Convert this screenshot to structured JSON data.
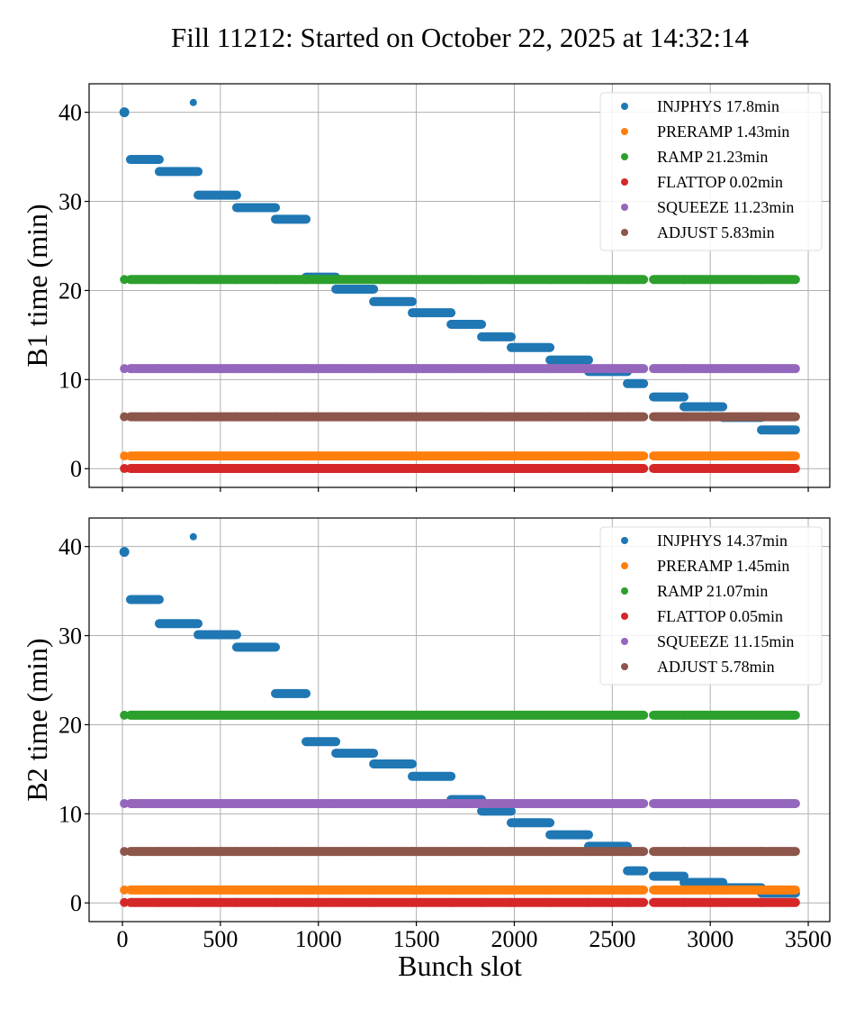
{
  "chart_data": {
    "type": "scatter",
    "title": "Fill 11212: Started on October 22, 2025 at 14:32:14",
    "xlabel": "Bunch slot",
    "xlim": [
      -170,
      3610
    ],
    "xticks": [
      0,
      500,
      1000,
      1500,
      2000,
      2500,
      3000,
      3500
    ],
    "grid": true,
    "colors": {
      "INJPHYS": "#1f77b4",
      "PRERAMP": "#ff7f0e",
      "RAMP": "#2ca02c",
      "FLATTOP": "#d62728",
      "SQUEEZE": "#9467bd",
      "ADJUST": "#8c564b"
    },
    "filling_segments": [
      [
        41,
        188
      ],
      [
        188,
        386
      ],
      [
        386,
        583
      ],
      [
        583,
        781
      ],
      [
        781,
        937
      ],
      [
        937,
        1089
      ],
      [
        1089,
        1282
      ],
      [
        1282,
        1479
      ],
      [
        1479,
        1677
      ],
      [
        1677,
        1833
      ],
      [
        1833,
        1984
      ],
      [
        1984,
        2182
      ],
      [
        2182,
        2379
      ],
      [
        2379,
        2577
      ],
      [
        2577,
        2660
      ],
      [
        2710,
        2866
      ],
      [
        2866,
        3064
      ],
      [
        3064,
        3261
      ],
      [
        3261,
        3435
      ]
    ],
    "single_bunches": [
      10,
      362
    ],
    "panels": [
      {
        "id": "B1",
        "ylabel": "B1 time (min)",
        "ylim": [
          -2.1,
          43.2
        ],
        "yticks": [
          0,
          10,
          20,
          30,
          40
        ],
        "legend_position": "upper-right",
        "series": [
          {
            "name": "INJPHYS",
            "label": "INJPHYS 17.8min",
            "single_values": [
              40.0,
              41.1
            ],
            "segment_values": [
              34.7,
              33.35,
              30.7,
              29.3,
              28.0,
              21.5,
              20.15,
              18.75,
              17.5,
              16.2,
              14.8,
              13.6,
              12.2,
              10.9,
              9.55,
              8.05,
              6.95,
              5.75,
              4.35
            ]
          },
          {
            "name": "PRERAMP",
            "label": "PRERAMP 1.43min",
            "constant": 1.43
          },
          {
            "name": "RAMP",
            "label": "RAMP 21.23min",
            "constant": 21.23
          },
          {
            "name": "FLATTOP",
            "label": "FLATTOP 0.02min",
            "constant": 0.02
          },
          {
            "name": "SQUEEZE",
            "label": "SQUEEZE 11.23min",
            "constant": 11.23
          },
          {
            "name": "ADJUST",
            "label": "ADJUST 5.83min",
            "constant": 5.83
          }
        ]
      },
      {
        "id": "B2",
        "ylabel": "B2 time (min)",
        "ylim": [
          -2.1,
          43.2
        ],
        "yticks": [
          0,
          10,
          20,
          30,
          40
        ],
        "legend_position": "upper-right",
        "series": [
          {
            "name": "INJPHYS",
            "label": "INJPHYS 14.37min",
            "single_values": [
              39.4,
              41.1
            ],
            "segment_values": [
              34.05,
              31.35,
              30.1,
              28.7,
              23.5,
              18.1,
              16.8,
              15.6,
              14.2,
              11.6,
              10.3,
              9.0,
              7.65,
              6.35,
              3.6,
              3.0,
              2.3,
              1.7,
              1.1
            ]
          },
          {
            "name": "PRERAMP",
            "label": "PRERAMP 1.45min",
            "constant": 1.45
          },
          {
            "name": "RAMP",
            "label": "RAMP 21.07min",
            "constant": 21.07
          },
          {
            "name": "FLATTOP",
            "label": "FLATTOP 0.05min",
            "constant": 0.05
          },
          {
            "name": "SQUEEZE",
            "label": "SQUEEZE 11.15min",
            "constant": 11.15
          },
          {
            "name": "ADJUST",
            "label": "ADJUST 5.78min",
            "constant": 5.78
          }
        ]
      }
    ]
  }
}
